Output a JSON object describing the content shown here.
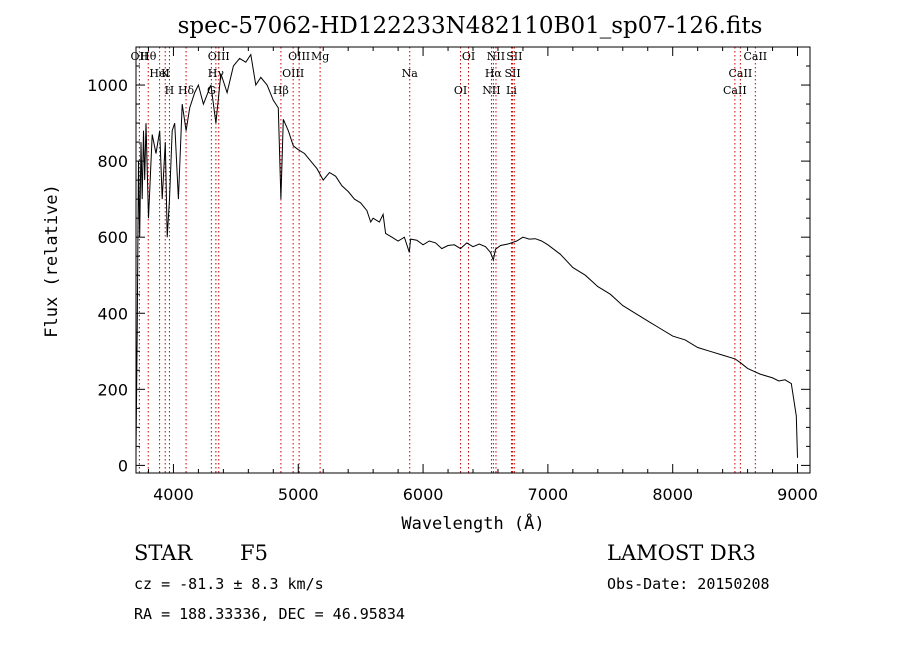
{
  "chart_data": {
    "type": "line",
    "title": "spec-57062-HD122233N482110B01_sp07-126.fits",
    "xlabel": "Wavelength (Å)",
    "ylabel": "Flux (relative)",
    "xlim": [
      3700,
      9100
    ],
    "ylim": [
      -20,
      1100
    ],
    "x_ticks": [
      4000,
      5000,
      6000,
      7000,
      8000,
      9000
    ],
    "y_ticks": [
      0,
      200,
      400,
      600,
      800,
      1000
    ],
    "grid": false,
    "colors": {
      "spectrum": "#000000",
      "line_markers": "#cc0000",
      "axes": "#000000"
    },
    "series": [
      {
        "name": "spectrum",
        "x": [
          3700,
          3710,
          3720,
          3730,
          3740,
          3750,
          3760,
          3770,
          3780,
          3800,
          3830,
          3860,
          3890,
          3910,
          3935,
          3950,
          3968,
          3990,
          4010,
          4040,
          4070,
          4101,
          4130,
          4170,
          4200,
          4240,
          4300,
          4340,
          4380,
          4430,
          4480,
          4530,
          4580,
          4620,
          4660,
          4700,
          4750,
          4800,
          4840,
          4861,
          4880,
          4920,
          4960,
          5000,
          5050,
          5100,
          5150,
          5200,
          5250,
          5300,
          5350,
          5400,
          5450,
          5500,
          5550,
          5580,
          5600,
          5650,
          5680,
          5700,
          5750,
          5800,
          5850,
          5890,
          5900,
          5950,
          6000,
          6050,
          6100,
          6150,
          6200,
          6250,
          6300,
          6350,
          6400,
          6450,
          6500,
          6540,
          6563,
          6580,
          6620,
          6680,
          6750,
          6800,
          6850,
          6900,
          6950,
          7000,
          7100,
          7200,
          7300,
          7400,
          7500,
          7600,
          7700,
          7800,
          7900,
          8000,
          8100,
          8200,
          8300,
          8400,
          8500,
          8542,
          8600,
          8700,
          8800,
          8850,
          8900,
          8950,
          8990,
          9000
        ],
        "y": [
          30,
          350,
          800,
          600,
          850,
          700,
          880,
          750,
          900,
          650,
          870,
          820,
          880,
          700,
          850,
          600,
          700,
          880,
          900,
          700,
          950,
          880,
          940,
          980,
          1000,
          950,
          1000,
          900,
          1030,
          980,
          1050,
          1070,
          1060,
          1080,
          1000,
          1020,
          1000,
          960,
          940,
          700,
          910,
          880,
          840,
          830,
          820,
          800,
          780,
          750,
          770,
          760,
          735,
          720,
          700,
          690,
          670,
          640,
          650,
          640,
          660,
          610,
          600,
          590,
          600,
          560,
          595,
          592,
          580,
          590,
          585,
          570,
          578,
          580,
          570,
          585,
          575,
          582,
          575,
          560,
          540,
          568,
          578,
          582,
          590,
          600,
          595,
          596,
          590,
          580,
          555,
          520,
          500,
          470,
          450,
          420,
          400,
          380,
          360,
          340,
          330,
          310,
          300,
          290,
          280,
          270,
          255,
          240,
          230,
          222,
          225,
          215,
          130,
          20
        ]
      }
    ],
    "annotations": [
      {
        "label": "Hθ",
        "wavelength": 3798
      },
      {
        "label": "K",
        "wavelength": 3934
      },
      {
        "label": "Hδ",
        "wavelength": 4101
      },
      {
        "label": "OII",
        "wavelength": 3727
      },
      {
        "label": "HeI",
        "wavelength": 3889
      },
      {
        "label": "H",
        "wavelength": 3968
      },
      {
        "label": "OIII",
        "wavelength": 4363
      },
      {
        "label": "Hγ",
        "wavelength": 4340
      },
      {
        "label": "G",
        "wavelength": 4304
      },
      {
        "label": "OIII",
        "wavelength": 5007
      },
      {
        "label": "OIII",
        "wavelength": 4959
      },
      {
        "label": "Hβ",
        "wavelength": 4861
      },
      {
        "label": "Mg",
        "wavelength": 5175
      },
      {
        "label": "Na",
        "wavelength": 5893
      },
      {
        "label": "OI",
        "wavelength": 6300
      },
      {
        "label": "OI",
        "wavelength": 6364
      },
      {
        "label": "Hα",
        "wavelength": 6563
      },
      {
        "label": "NII",
        "wavelength": 6548
      },
      {
        "label": "NII",
        "wavelength": 6584
      },
      {
        "label": "SII",
        "wavelength": 6717
      },
      {
        "label": "Li",
        "wavelength": 6708
      },
      {
        "label": "SII",
        "wavelength": 6731
      },
      {
        "label": "CaII",
        "wavelength": 8542
      },
      {
        "label": "CaII",
        "wavelength": 8498
      },
      {
        "label": "CaII",
        "wavelength": 8662
      }
    ]
  },
  "info": {
    "class_label": "STAR",
    "subclass": "F5",
    "survey": "LAMOST DR3",
    "redshift": "cz = -81.3 ± 8.3 km/s",
    "obs_date": "Obs-Date: 20150208",
    "coords": "RA = 188.33336, DEC =  46.95834"
  }
}
